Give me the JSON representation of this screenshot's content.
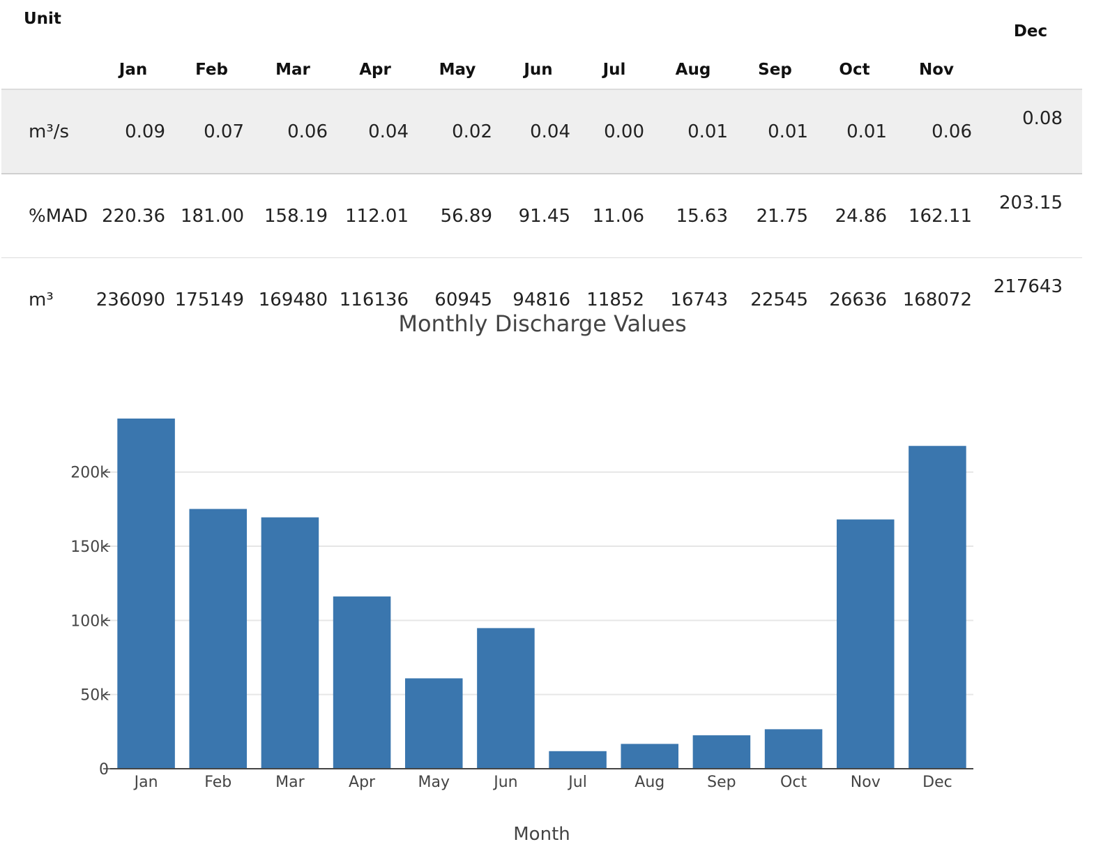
{
  "table": {
    "unit_header": "Unit",
    "months": [
      "Jan",
      "Feb",
      "Mar",
      "Apr",
      "May",
      "Jun",
      "Jul",
      "Aug",
      "Sep",
      "Oct",
      "Nov",
      "Dec"
    ],
    "rows": [
      {
        "unit": "m³/s",
        "values": [
          "0.09",
          "0.07",
          "0.06",
          "0.04",
          "0.02",
          "0.04",
          "0.00",
          "0.01",
          "0.01",
          "0.01",
          "0.06",
          "0.08"
        ]
      },
      {
        "unit": "%MAD",
        "values": [
          "220.36",
          "181.00",
          "158.19",
          "112.01",
          "56.89",
          "91.45",
          "11.06",
          "15.63",
          "21.75",
          "24.86",
          "162.11",
          "203.15"
        ]
      },
      {
        "unit": "m³",
        "values": [
          "236090",
          "175149",
          "169480",
          "116136",
          "60945",
          "94816",
          "11852",
          "16743",
          "22545",
          "26636",
          "168072",
          "217643"
        ]
      }
    ]
  },
  "chart_data": {
    "type": "bar",
    "title": "Monthly Discharge Values",
    "xlabel": "Month",
    "ylabel": "",
    "categories": [
      "Jan",
      "Feb",
      "Mar",
      "Apr",
      "May",
      "Jun",
      "Jul",
      "Aug",
      "Sep",
      "Oct",
      "Nov",
      "Dec"
    ],
    "values": [
      236090,
      175149,
      169480,
      116136,
      60945,
      94816,
      11852,
      16743,
      22545,
      26636,
      168072,
      217643
    ],
    "ylim": [
      0,
      236090
    ],
    "yticks": [
      0,
      50000,
      100000,
      150000,
      200000
    ],
    "ytick_labels": [
      "0",
      "50k",
      "100k",
      "150k",
      "200k"
    ],
    "bar_color": "#3a76ae",
    "grid": true
  }
}
